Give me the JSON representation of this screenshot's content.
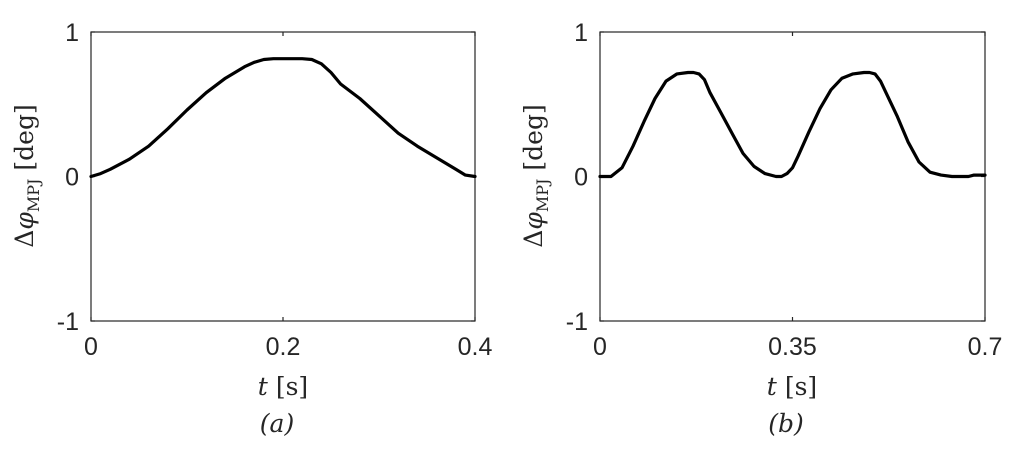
{
  "chart_data": [
    {
      "type": "line",
      "caption": "(a)",
      "xlabel": {
        "var": "t",
        "unit": "[s]"
      },
      "ylabel": {
        "delta": "Δ",
        "phi": "φ",
        "sub": "MPJ",
        "unit": "[deg]"
      },
      "xlim": [
        0,
        0.4
      ],
      "ylim": [
        -1,
        1
      ],
      "xticks": [
        0,
        0.2,
        0.4
      ],
      "xtick_labels": [
        "0",
        "0.2",
        "0.4"
      ],
      "yticks": [
        -1,
        0,
        1
      ],
      "ytick_labels": [
        "-1",
        "0",
        "1"
      ],
      "grid": false,
      "series": [
        {
          "x": [
            0,
            0.01,
            0.02,
            0.04,
            0.06,
            0.08,
            0.1,
            0.12,
            0.14,
            0.16,
            0.17,
            0.18,
            0.19,
            0.2,
            0.21,
            0.22,
            0.23,
            0.24,
            0.25,
            0.26,
            0.28,
            0.3,
            0.32,
            0.34,
            0.36,
            0.38,
            0.39,
            0.4
          ],
          "y": [
            0.0,
            0.02,
            0.05,
            0.12,
            0.21,
            0.33,
            0.46,
            0.58,
            0.68,
            0.76,
            0.79,
            0.81,
            0.815,
            0.815,
            0.815,
            0.815,
            0.81,
            0.78,
            0.72,
            0.64,
            0.54,
            0.42,
            0.3,
            0.21,
            0.13,
            0.05,
            0.01,
            0.0
          ]
        }
      ]
    },
    {
      "type": "line",
      "caption": "(b)",
      "xlabel": {
        "var": "t",
        "unit": "[s]"
      },
      "ylabel": {
        "delta": "Δ",
        "phi": "φ",
        "sub": "MPJ",
        "unit": "[deg]"
      },
      "xlim": [
        0,
        0.7
      ],
      "ylim": [
        -1,
        1
      ],
      "xticks": [
        0,
        0.35,
        0.7
      ],
      "xtick_labels": [
        "0",
        "0.35",
        "0.7"
      ],
      "yticks": [
        -1,
        0,
        1
      ],
      "ytick_labels": [
        "-1",
        "0",
        "1"
      ],
      "grid": false,
      "series": [
        {
          "x": [
            0,
            0.02,
            0.04,
            0.06,
            0.08,
            0.1,
            0.12,
            0.14,
            0.16,
            0.17,
            0.18,
            0.19,
            0.2,
            0.22,
            0.24,
            0.26,
            0.28,
            0.3,
            0.32,
            0.33,
            0.34,
            0.35,
            0.36,
            0.38,
            0.4,
            0.42,
            0.44,
            0.46,
            0.48,
            0.49,
            0.5,
            0.51,
            0.52,
            0.54,
            0.56,
            0.58,
            0.6,
            0.62,
            0.64,
            0.66,
            0.67,
            0.68,
            0.69,
            0.7
          ],
          "y": [
            0.0,
            0.0,
            0.06,
            0.21,
            0.38,
            0.54,
            0.66,
            0.71,
            0.72,
            0.72,
            0.71,
            0.67,
            0.58,
            0.44,
            0.3,
            0.16,
            0.07,
            0.02,
            0.0,
            0.0,
            0.02,
            0.06,
            0.14,
            0.31,
            0.47,
            0.6,
            0.68,
            0.71,
            0.72,
            0.72,
            0.71,
            0.66,
            0.58,
            0.42,
            0.24,
            0.1,
            0.03,
            0.01,
            0.0,
            0.0,
            0.0,
            0.01,
            0.01,
            0.01
          ]
        }
      ]
    }
  ]
}
